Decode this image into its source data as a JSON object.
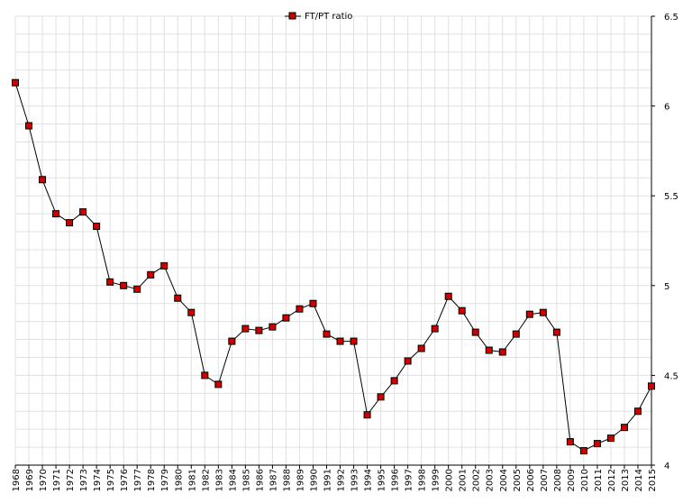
{
  "chart_data": {
    "type": "line",
    "title": "",
    "xlabel": "",
    "ylabel": "",
    "x": [
      "1968",
      "1969",
      "1970",
      "1971",
      "1972",
      "1973",
      "1974",
      "1975",
      "1976",
      "1977",
      "1978",
      "1979",
      "1980",
      "1981",
      "1982",
      "1983",
      "1984",
      "1985",
      "1986",
      "1987",
      "1988",
      "1989",
      "1990",
      "1991",
      "1992",
      "1993",
      "1994",
      "1995",
      "1996",
      "1997",
      "1998",
      "1999",
      "2000",
      "2001",
      "2002",
      "2003",
      "2004",
      "2005",
      "2006",
      "2007",
      "2008",
      "2009",
      "2010",
      "2011",
      "2012",
      "2013",
      "2014",
      "2015"
    ],
    "series": [
      {
        "name": "FT/PT ratio",
        "color": "#cc0000",
        "values": [
          6.13,
          5.89,
          5.59,
          5.4,
          5.35,
          5.41,
          5.33,
          5.02,
          5.0,
          4.98,
          5.06,
          5.11,
          4.93,
          4.85,
          4.5,
          4.45,
          4.69,
          4.76,
          4.75,
          4.77,
          4.82,
          4.87,
          4.9,
          4.73,
          4.69,
          4.69,
          4.28,
          4.38,
          4.47,
          4.58,
          4.65,
          4.76,
          4.94,
          4.86,
          4.74,
          4.64,
          4.63,
          4.73,
          4.84,
          4.85,
          4.74,
          4.13,
          4.08,
          4.12,
          4.15,
          4.21,
          4.3,
          4.44
        ]
      }
    ],
    "ylim": [
      4,
      6.5
    ],
    "yticks": [
      "4",
      "4.5",
      "5",
      "5.5",
      "6",
      "6.5"
    ],
    "grid": true,
    "legend": "top-center"
  }
}
